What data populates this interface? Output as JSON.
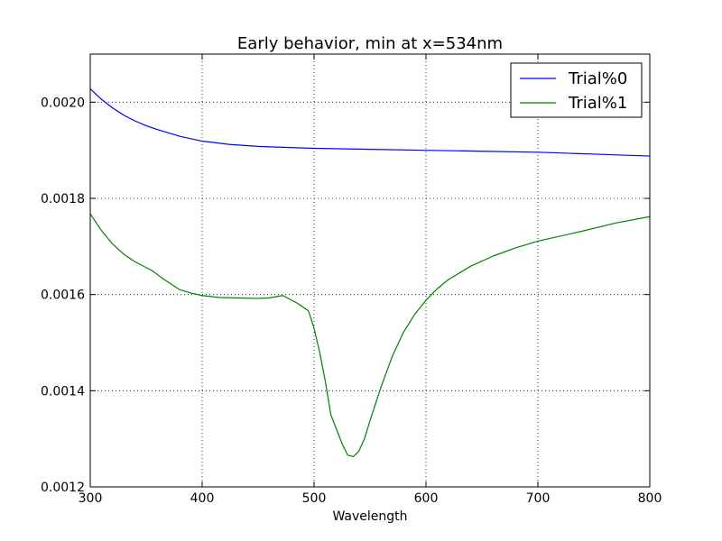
{
  "chart_data": {
    "type": "line",
    "title": "Early behavior, min at x=534nm",
    "xlabel": "Wavelength",
    "ylabel": "",
    "xlim": [
      300,
      800
    ],
    "ylim": [
      0.0012,
      0.0021
    ],
    "xticks": [
      300,
      400,
      500,
      600,
      700,
      800
    ],
    "xtick_labels": [
      "300",
      "400",
      "500",
      "600",
      "700",
      "800"
    ],
    "yticks": [
      0.0012,
      0.0014,
      0.0016,
      0.0018,
      0.002
    ],
    "ytick_labels": [
      "0.0012",
      "0.0014",
      "0.0016",
      "0.0018",
      "0.0020"
    ],
    "grid": true,
    "grid_style": "dotted",
    "legend_position": "top-right",
    "series": [
      {
        "name": "Trial%0",
        "color": "#0000ff",
        "x": [
          300,
          310,
          320,
          330,
          340,
          350,
          360,
          380,
          400,
          425,
          450,
          475,
          500,
          550,
          600,
          650,
          700,
          750,
          800
        ],
        "y": [
          0.002028,
          0.002006,
          0.001988,
          0.001973,
          0.001961,
          0.001951,
          0.001943,
          0.001929,
          0.001919,
          0.001912,
          0.001908,
          0.001906,
          0.001904,
          0.001902,
          0.0019,
          0.001898,
          0.001896,
          0.001892,
          0.001888
        ]
      },
      {
        "name": "Trial%1",
        "color": "#008000",
        "x": [
          300,
          310,
          320,
          330,
          340,
          355,
          365,
          380,
          390,
          400,
          415,
          430,
          450,
          460,
          472,
          485,
          495,
          500,
          505,
          510,
          515,
          520,
          525,
          530,
          535,
          540,
          545,
          550,
          560,
          570,
          580,
          590,
          600,
          610,
          620,
          640,
          660,
          680,
          700,
          740,
          770,
          800
        ],
        "y": [
          0.001768,
          0.001733,
          0.001705,
          0.001684,
          0.001668,
          0.00165,
          0.001633,
          0.00161,
          0.001603,
          0.001598,
          0.001594,
          0.001593,
          0.001592,
          0.001593,
          0.001598,
          0.001582,
          0.001566,
          0.00153,
          0.00148,
          0.00142,
          0.00135,
          0.00132,
          0.00129,
          0.001266,
          0.001263,
          0.001274,
          0.0013,
          0.001338,
          0.001409,
          0.001472,
          0.001522,
          0.001559,
          0.001588,
          0.001612,
          0.001631,
          0.001659,
          0.00168,
          0.001697,
          0.001711,
          0.001732,
          0.001749,
          0.001762
        ]
      }
    ]
  }
}
